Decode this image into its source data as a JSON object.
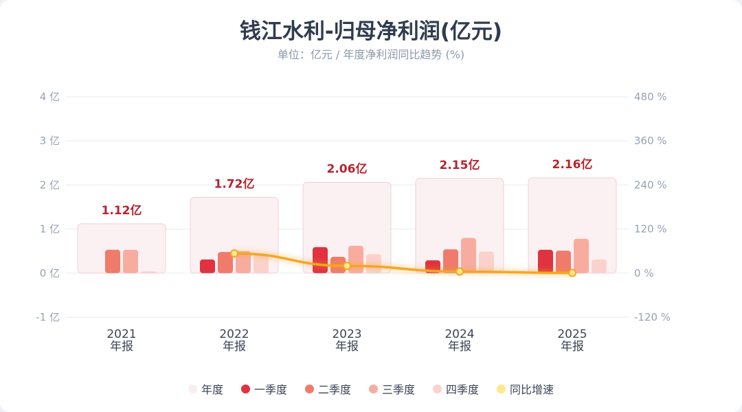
{
  "header": {
    "title": "钱江水利-归母净利润(亿元)",
    "subtitle": "单位：亿元 / 年度净利润同比趋势 (%)"
  },
  "colors": {
    "annual": "#f6d8dc",
    "q1": "#e0323f",
    "q2": "#f07b6b",
    "q3": "#f8aca0",
    "q4": "#fbd2cb",
    "yoy": "#f5a623",
    "value_label": "#b8232f"
  },
  "chart_data": {
    "type": "bar",
    "categories": [
      "2021",
      "2022",
      "2023",
      "2024",
      "2025"
    ],
    "category_sublabel": "年报",
    "y_left": {
      "unit": "亿",
      "ylim": [
        -1,
        4
      ],
      "ticks": [
        -1,
        0,
        1,
        2,
        3,
        4
      ],
      "tick_labels": [
        "-1 亿",
        "0 亿",
        "1 亿",
        "2 亿",
        "3 亿",
        "4 亿"
      ]
    },
    "y_right": {
      "unit": "%",
      "ylim": [
        -120,
        480
      ],
      "tick_labels": [
        "-120 %",
        "0 %",
        "120 %",
        "240 %",
        "360 %",
        "480 %"
      ]
    },
    "annual": {
      "name": "年度",
      "values": [
        1.12,
        1.72,
        2.06,
        2.15,
        2.16
      ],
      "labels": [
        "1.12亿",
        "1.72亿",
        "2.06亿",
        "2.15亿",
        "2.16亿"
      ]
    },
    "series": [
      {
        "name": "一季度",
        "values": [
          0,
          0.31,
          0.59,
          0.29,
          0.53
        ]
      },
      {
        "name": "二季度",
        "values": [
          0.53,
          0.48,
          0.37,
          0.54,
          0.51
        ]
      },
      {
        "name": "三季度",
        "values": [
          0.53,
          0.5,
          0.62,
          0.8,
          0.78
        ]
      },
      {
        "name": "四季度",
        "values": [
          0.04,
          0.43,
          0.43,
          0.49,
          0.31
        ]
      }
    ],
    "yoy": {
      "name": "同比增速",
      "values": [
        null,
        53.6,
        19.8,
        4.4,
        0.5
      ]
    },
    "grid": true,
    "legend_position": "bottom"
  },
  "legend": {
    "items": [
      "年度",
      "一季度",
      "二季度",
      "三季度",
      "四季度",
      "同比增速"
    ]
  }
}
